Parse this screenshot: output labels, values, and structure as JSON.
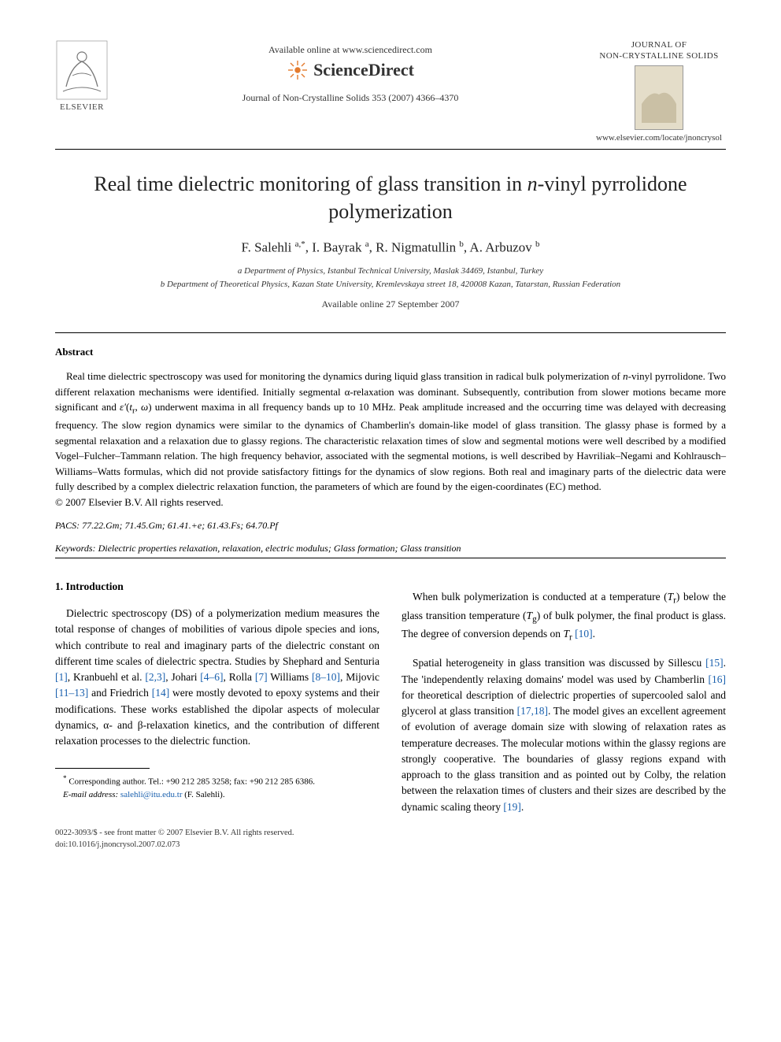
{
  "header": {
    "available_online": "Available online at www.sciencedirect.com",
    "sciencedirect": "ScienceDirect",
    "journal_ref": "Journal of Non-Crystalline Solids 353 (2007) 4366–4370",
    "journal_title_line1": "JOURNAL OF",
    "journal_title_line2": "NON-CRYSTALLINE SOLIDS",
    "locate_url": "www.elsevier.com/locate/jnoncrysol",
    "elsevier": "ELSEVIER"
  },
  "article": {
    "title_html": "Real time dielectric monitoring of glass transition in <span class=\"italic\">n</span>-vinyl pyrrolidone polymerization",
    "authors_html": "F. Salehli <sup>a,*</sup>, I. Bayrak <sup>a</sup>, R. Nigmatullin <sup>b</sup>, A. Arbuzov <sup>b</sup>",
    "affil_a": "a Department of Physics, Istanbul Technical University, Maslak 34469, Istanbul, Turkey",
    "affil_b": "b Department of Theoretical Physics, Kazan State University, Kremlevskaya street 18, 420008 Kazan, Tatarstan, Russian Federation",
    "avail_date": "Available online 27 September 2007"
  },
  "abstract": {
    "heading": "Abstract",
    "text_html": "Real time dielectric spectroscopy was used for monitoring the dynamics during liquid glass transition in radical bulk polymerization of <span class=\"italic\">n</span>-vinyl pyrrolidone. Two different relaxation mechanisms were identified. Initially segmental α-relaxation was dominant. Subsequently, contribution from slower motions became more significant and <span class=\"italic\">ε′</span>(<span class=\"italic\">t</span><sub>r</sub>, <span class=\"italic\">ω</span>) underwent maxima in all frequency bands up to 10 MHz. Peak amplitude increased and the occurring time was delayed with decreasing frequency. The slow region dynamics were similar to the dynamics of Chamberlin's domain-like model of glass transition. The glassy phase is formed by a segmental relaxation and a relaxation due to glassy regions. The characteristic relaxation times of slow and segmental motions were well described by a modified Vogel–Fulcher–Tammann relation. The high frequency behavior, associated with the segmental motions, is well described by Havriliak–Negami and Kohlrausch–Williams–Watts formulas, which did not provide satisfactory fittings for the dynamics of slow regions. Both real and imaginary parts of the dielectric data were fully described by a complex dielectric relaxation function, the parameters of which are found by the eigen-coordinates (EC) method.",
    "copyright": "© 2007 Elsevier B.V. All rights reserved."
  },
  "meta": {
    "pacs_label": "PACS:",
    "pacs": "77.22.Gm; 71.45.Gm; 61.41.+e; 61.43.Fs; 64.70.Pf",
    "keywords_label": "Keywords:",
    "keywords": "Dielectric properties relaxation, relaxation, electric modulus; Glass formation; Glass transition"
  },
  "body": {
    "section1_heading": "1. Introduction",
    "col1_p1_html": "Dielectric spectroscopy (DS) of a polymerization medium measures the total response of changes of mobilities of various dipole species and ions, which contribute to real and imaginary parts of the dielectric constant on different time scales of dielectric spectra. Studies by Shephard and Senturia <span class=\"ref-link\">[1]</span>, Kranbuehl et al. <span class=\"ref-link\">[2,3]</span>, Johari <span class=\"ref-link\">[4–6]</span>, Rolla <span class=\"ref-link\">[7]</span> Williams <span class=\"ref-link\">[8–10]</span>, Mijovic <span class=\"ref-link\">[11–13]</span> and Friedrich <span class=\"ref-link\">[14]</span> were mostly devoted to epoxy systems and their modifications. These works established the dipolar aspects of molecular dynamics, α- and β-relaxation kinetics, and the contribution of different relaxation processes to the dielectric function.",
    "col2_p1_html": "When bulk polymerization is conducted at a temperature (<span class=\"italic\">T</span><sub>r</sub>) below the glass transition temperature (<span class=\"italic\">T</span><sub>g</sub>) of bulk polymer, the final product is glass. The degree of conversion depends on <span class=\"italic\">T</span><sub>r</sub> <span class=\"ref-link\">[10]</span>.",
    "col2_p2_html": "Spatial heterogeneity in glass transition was discussed by Sillescu <span class=\"ref-link\">[15]</span>. The 'independently relaxing domains' model was used by Chamberlin <span class=\"ref-link\">[16]</span> for theoretical description of dielectric properties of supercooled salol and glycerol at glass transition <span class=\"ref-link\">[17,18]</span>. The model gives an excellent agreement of evolution of average domain size with slowing of relaxation rates as temperature decreases. The molecular motions within the glassy regions are strongly cooperative. The boundaries of glassy regions expand with approach to the glass transition and as pointed out by Colby, the relation between the relaxation times of clusters and their sizes are described by the dynamic scaling theory <span class=\"ref-link\">[19]</span>."
  },
  "footnote": {
    "corr_html": "<sup>*</sup> Corresponding author. Tel.: +90 212 285 3258; fax: +90 212 285 6386.",
    "email_label": "E-mail address:",
    "email": "salehli@itu.edu.tr",
    "email_author": "(F. Salehli)."
  },
  "bottom": {
    "line1": "0022-3093/$ - see front matter © 2007 Elsevier B.V. All rights reserved.",
    "line2": "doi:10.1016/j.jnoncrysol.2007.02.073"
  },
  "colors": {
    "link": "#185fad",
    "text": "#000000",
    "muted": "#333333"
  }
}
